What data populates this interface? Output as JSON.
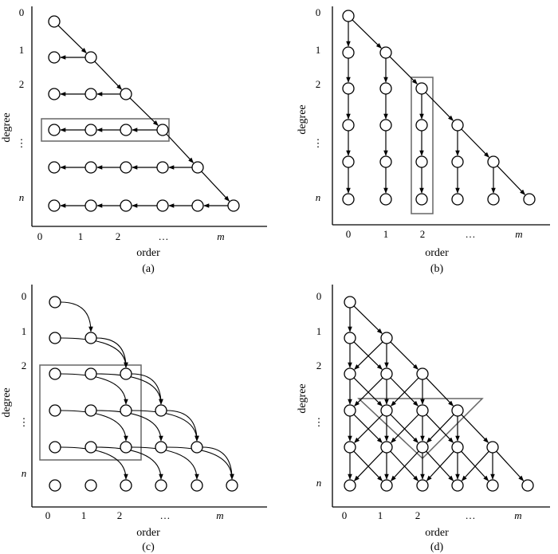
{
  "panels": [
    {
      "id": "a",
      "caption": "(a)",
      "xlabel": "order",
      "ylabel": "degree",
      "y_ticks": [
        "0",
        "1",
        "2",
        "⋮",
        "n"
      ],
      "x_ticks": [
        "0",
        "1",
        "2",
        "…",
        "m"
      ]
    },
    {
      "id": "b",
      "caption": "(b)",
      "xlabel": "order",
      "ylabel": "degree",
      "y_ticks": [
        "0",
        "1",
        "2",
        "⋮",
        "n"
      ],
      "x_ticks": [
        "0",
        "1",
        "2",
        "…",
        "m"
      ]
    },
    {
      "id": "c",
      "caption": "(c)",
      "xlabel": "order",
      "ylabel": "degree",
      "y_ticks": [
        "0",
        "1",
        "2",
        "⋮",
        "n"
      ],
      "x_ticks": [
        "0",
        "1",
        "2",
        "…",
        "m"
      ]
    },
    {
      "id": "d",
      "caption": "(d)",
      "xlabel": "order",
      "ylabel": "degree",
      "y_ticks": [
        "0",
        "1",
        "2",
        "⋮",
        "n"
      ],
      "x_ticks": [
        "0",
        "1",
        "2",
        "…",
        "m"
      ]
    }
  ]
}
